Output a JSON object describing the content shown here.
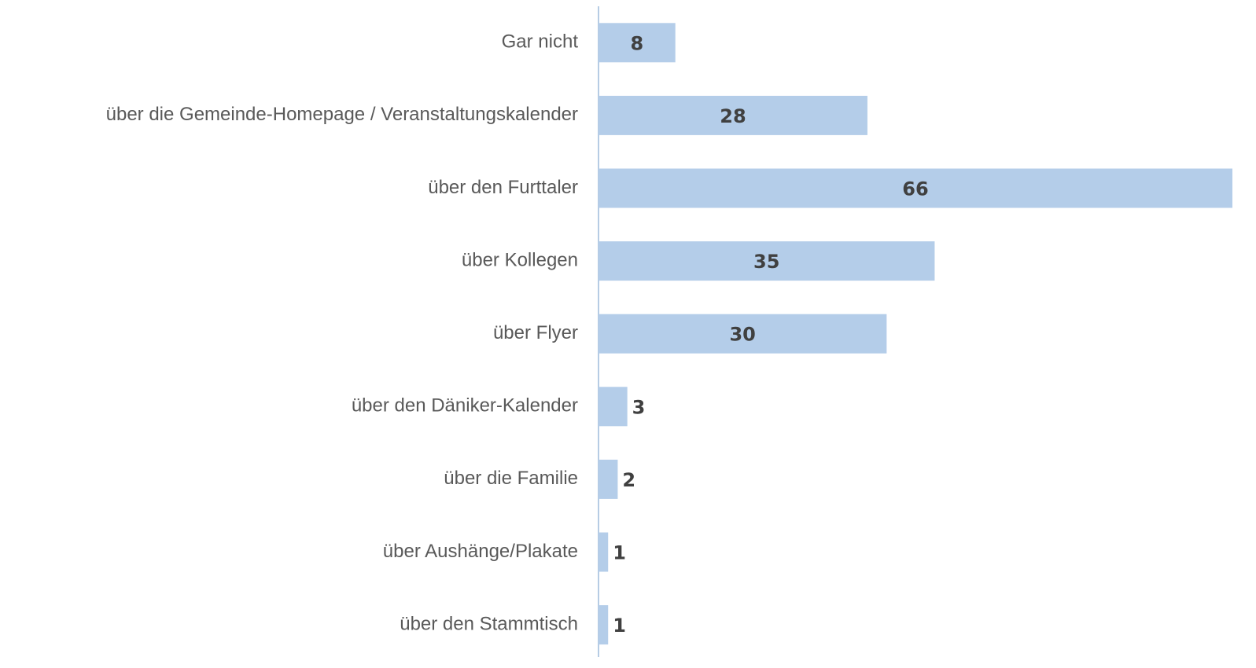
{
  "chart_data": {
    "type": "bar",
    "orientation": "horizontal",
    "categories": [
      "Gar nicht",
      "über die Gemeinde-Homepage / Veranstaltungskalender",
      "über den Furttaler",
      "über Kollegen",
      "über Flyer",
      "über den Däniker-Kalender",
      "über die Familie",
      "über Aushänge/Plakate",
      "über den Stammtisch"
    ],
    "values": [
      8,
      28,
      66,
      35,
      30,
      3,
      2,
      1,
      1
    ],
    "color": "#b4cde9",
    "xlim": [
      0,
      66
    ]
  }
}
